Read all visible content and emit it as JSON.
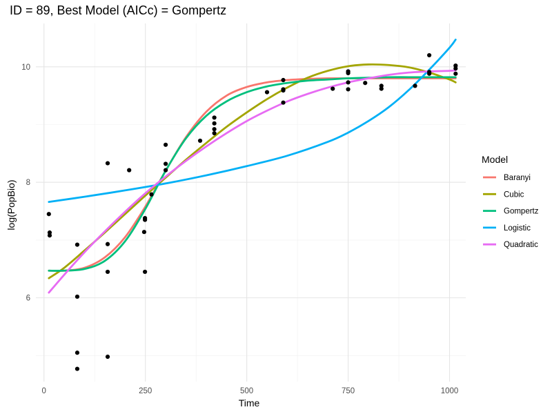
{
  "chart_data": {
    "type": "scatter",
    "title": "ID = 89, Best Model (AICc) = Gompertz",
    "xlabel": "Time",
    "ylabel": "log(PopBio)",
    "xlim": [
      -20,
      1040
    ],
    "ylim": [
      4.55,
      10.75
    ],
    "x_ticks": [
      0,
      250,
      500,
      750,
      1000
    ],
    "y_ticks": [
      6,
      8,
      10
    ],
    "grid": true,
    "legend_title": "Model",
    "legend_position": "right",
    "points": [
      [
        12,
        7.45
      ],
      [
        14,
        7.13
      ],
      [
        14,
        7.08
      ],
      [
        82,
        6.92
      ],
      [
        82,
        6.02
      ],
      [
        82,
        5.05
      ],
      [
        82,
        4.77
      ],
      [
        157,
        8.33
      ],
      [
        157,
        6.93
      ],
      [
        157,
        6.45
      ],
      [
        157,
        4.98
      ],
      [
        210,
        8.21
      ],
      [
        247,
        7.14
      ],
      [
        249,
        7.35
      ],
      [
        249,
        7.38
      ],
      [
        249,
        6.45
      ],
      [
        265,
        7.79
      ],
      [
        300,
        8.65
      ],
      [
        300,
        8.32
      ],
      [
        300,
        8.21
      ],
      [
        385,
        8.72
      ],
      [
        420,
        9.12
      ],
      [
        420,
        9.02
      ],
      [
        420,
        8.92
      ],
      [
        420,
        8.85
      ],
      [
        550,
        9.56
      ],
      [
        590,
        9.77
      ],
      [
        590,
        9.61
      ],
      [
        590,
        9.59
      ],
      [
        590,
        9.38
      ],
      [
        712,
        9.62
      ],
      [
        750,
        9.92
      ],
      [
        750,
        9.89
      ],
      [
        750,
        9.73
      ],
      [
        750,
        9.61
      ],
      [
        792,
        9.72
      ],
      [
        832,
        9.67
      ],
      [
        832,
        9.62
      ],
      [
        915,
        9.67
      ],
      [
        950,
        10.2
      ],
      [
        950,
        9.88
      ],
      [
        950,
        9.91
      ],
      [
        1015,
        10.02
      ],
      [
        1015,
        9.97
      ],
      [
        1015,
        9.88
      ]
    ],
    "series": [
      {
        "name": "Baranyi",
        "color": "#F8766D",
        "x": [
          12,
          50,
          100,
          150,
          200,
          250,
          300,
          350,
          400,
          450,
          500,
          550,
          600,
          650,
          700,
          750,
          800,
          850,
          900,
          950,
          1000,
          1015
        ],
        "y": [
          6.47,
          6.47,
          6.52,
          6.7,
          7.05,
          7.58,
          8.2,
          8.78,
          9.22,
          9.5,
          9.65,
          9.73,
          9.77,
          9.79,
          9.8,
          9.8,
          9.8,
          9.8,
          9.8,
          9.8,
          9.8,
          9.8
        ]
      },
      {
        "name": "Cubic",
        "color": "#A3A500",
        "x": [
          12,
          50,
          100,
          150,
          200,
          250,
          300,
          350,
          400,
          450,
          500,
          550,
          600,
          650,
          700,
          750,
          800,
          850,
          900,
          950,
          1000,
          1015
        ],
        "y": [
          6.34,
          6.52,
          6.82,
          7.13,
          7.45,
          7.77,
          8.08,
          8.39,
          8.68,
          8.96,
          9.21,
          9.44,
          9.64,
          9.81,
          9.93,
          10.01,
          10.04,
          10.03,
          9.99,
          9.9,
          9.78,
          9.73
        ]
      },
      {
        "name": "Gompertz",
        "color": "#00BF7D",
        "x": [
          12,
          50,
          100,
          150,
          200,
          250,
          300,
          350,
          400,
          450,
          500,
          550,
          600,
          650,
          700,
          750,
          800,
          850,
          900,
          950,
          1000,
          1015
        ],
        "y": [
          6.47,
          6.47,
          6.5,
          6.64,
          6.98,
          7.54,
          8.2,
          8.76,
          9.15,
          9.4,
          9.56,
          9.66,
          9.72,
          9.76,
          9.78,
          9.8,
          9.81,
          9.82,
          9.82,
          9.82,
          9.82,
          9.82
        ]
      },
      {
        "name": "Logistic",
        "color": "#00B0F6",
        "x": [
          12,
          100,
          200,
          300,
          400,
          500,
          600,
          700,
          750,
          800,
          850,
          900,
          950,
          1000,
          1015
        ],
        "y": [
          7.66,
          7.75,
          7.86,
          7.98,
          8.12,
          8.28,
          8.46,
          8.7,
          8.86,
          9.06,
          9.3,
          9.6,
          9.95,
          10.33,
          10.47
        ]
      },
      {
        "name": "Quadratic",
        "color": "#E76BF3",
        "x": [
          12,
          50,
          100,
          150,
          200,
          250,
          300,
          350,
          400,
          450,
          500,
          550,
          600,
          650,
          700,
          750,
          800,
          850,
          900,
          950,
          1000,
          1015
        ],
        "y": [
          6.09,
          6.4,
          6.79,
          7.15,
          7.49,
          7.81,
          8.1,
          8.37,
          8.62,
          8.85,
          9.06,
          9.24,
          9.4,
          9.53,
          9.64,
          9.73,
          9.8,
          9.86,
          9.9,
          9.92,
          9.93,
          9.94
        ]
      }
    ]
  }
}
